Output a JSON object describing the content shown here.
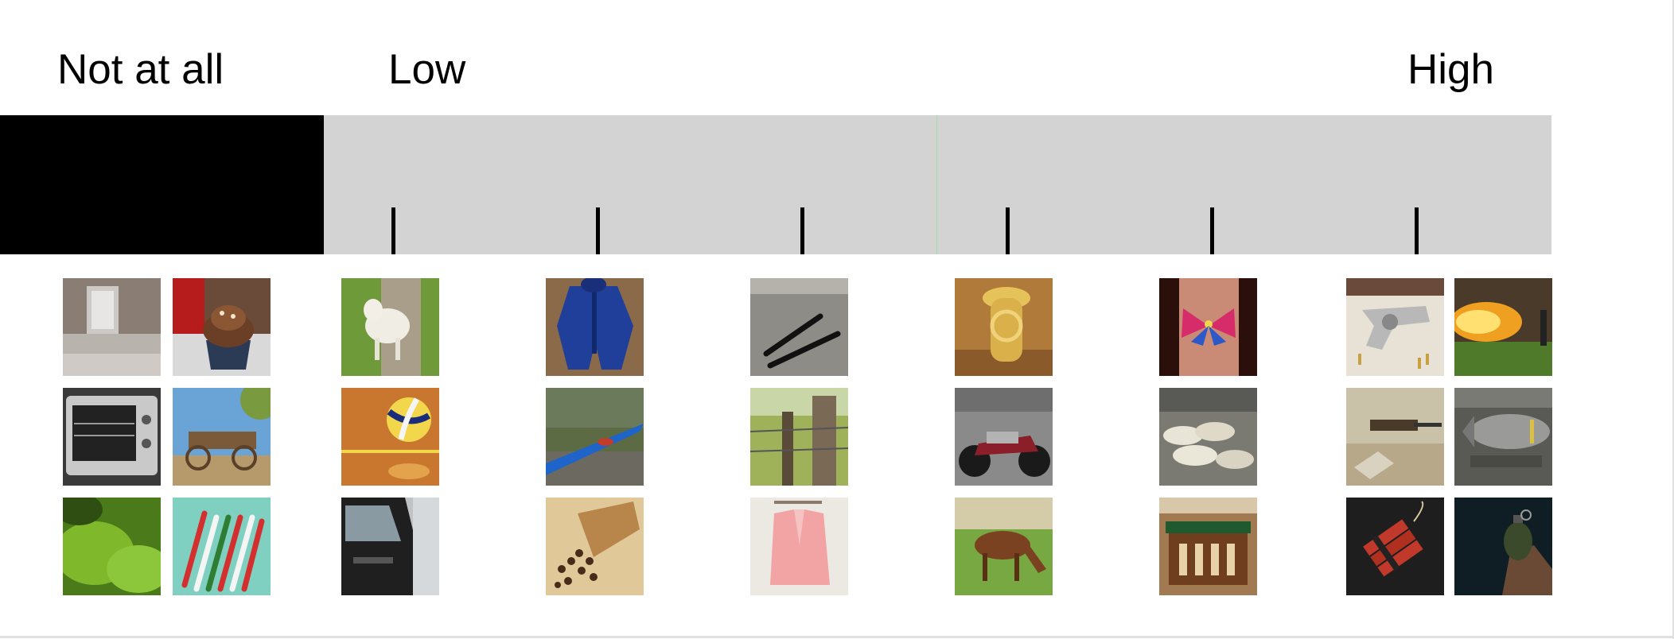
{
  "labels": {
    "not_at_all": "Not at all",
    "low": "Low",
    "high": "High"
  },
  "scale": {
    "tick_count": 6,
    "colors": {
      "bar": "#d3d3d3",
      "none_segment": "#000000",
      "divider": "#a9dba9"
    }
  },
  "image_groups": [
    {
      "level": "Not at all",
      "items": [
        "glass-block",
        "cupcake",
        "toaster-oven",
        "wooden-wagon",
        "moss",
        "candy-canes"
      ]
    },
    {
      "level": "tick-1",
      "items": [
        "lamb",
        "volleyball",
        "car-door"
      ]
    },
    {
      "level": "tick-2",
      "items": [
        "snowsuit",
        "kayak",
        "cloves"
      ]
    },
    {
      "level": "tick-3",
      "items": [
        "pens",
        "barbed-wire-post",
        "pink-blazer"
      ]
    },
    {
      "level": "tick-4",
      "items": [
        "tuba",
        "motorcycle",
        "horse"
      ]
    },
    {
      "level": "tick-5",
      "items": [
        "butterfly-tattoo",
        "sandbags",
        "altar"
      ]
    },
    {
      "level": "High",
      "items": [
        "revolver",
        "flamethrower",
        "machine-gun",
        "bomb",
        "dynamite",
        "grenade"
      ]
    }
  ]
}
